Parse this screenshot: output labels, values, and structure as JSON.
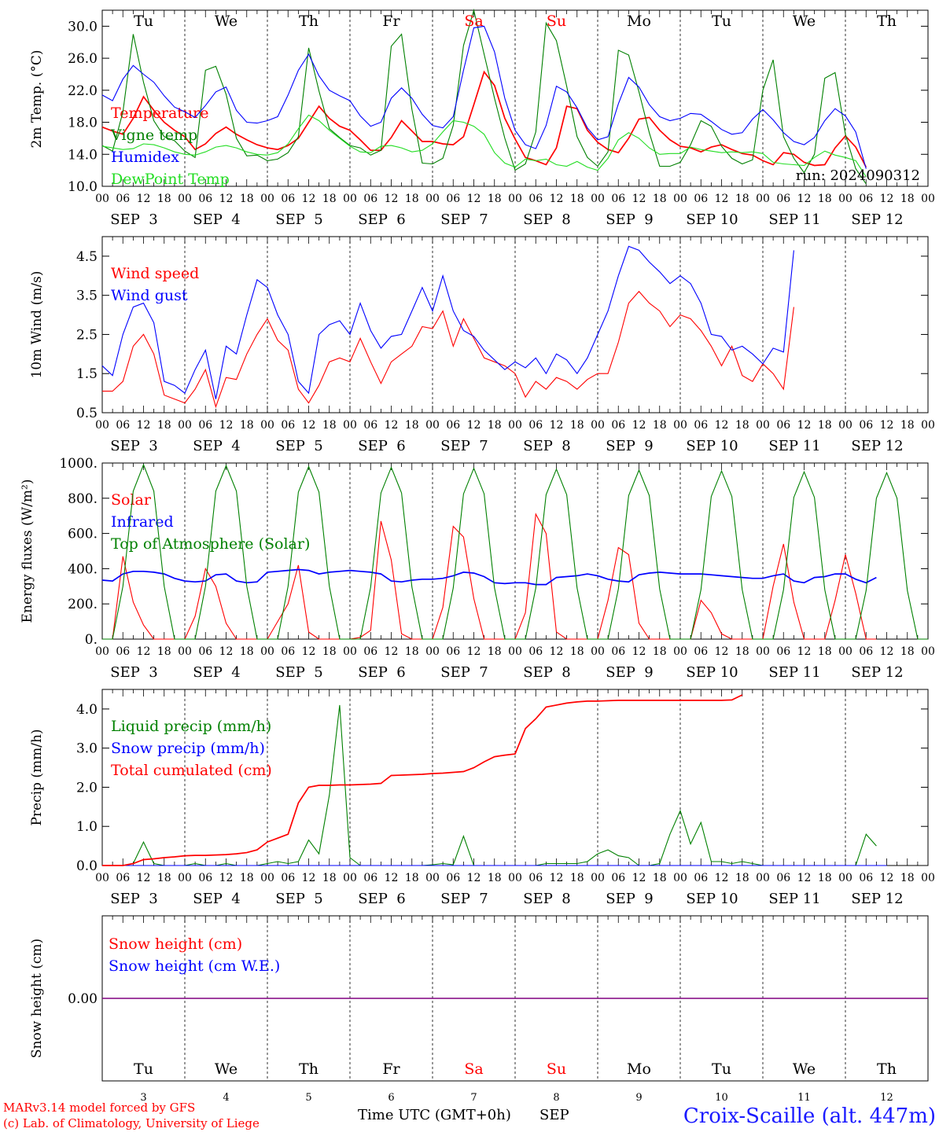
{
  "colors": {
    "red": "#ff0000",
    "green": "#008000",
    "blue": "#0000ff",
    "lightgreen": "#22dd22",
    "purple": "#800080",
    "axis": "#000000",
    "weekend": "#ff0000",
    "station": "#1a1aff"
  },
  "days": [
    "Tu",
    "We",
    "Th",
    "Fr",
    "Sa",
    "Su",
    "Mo",
    "Tu",
    "We",
    "Th"
  ],
  "weekend_days": [
    4,
    5
  ],
  "date_labels": [
    "SEP  3",
    "SEP  4",
    "SEP  5",
    "SEP  6",
    "SEP  7",
    "SEP  8",
    "SEP  9",
    "SEP 10",
    "SEP 11",
    "SEP 12"
  ],
  "hour_labels": [
    "00",
    "06",
    "12",
    "18"
  ],
  "hour_final": "00",
  "bottom_day_numbers": [
    "3",
    "4",
    "5",
    "6",
    "7",
    "8",
    "9",
    "10",
    "11",
    "12"
  ],
  "run_label": "run: 2024090312",
  "footer": {
    "model_line": "MARv3.14 model forced by GFS",
    "lab_line": "(c) Lab. of Climatology, University of Liege",
    "time_axis": "Time UTC (GMT+0h)",
    "month": "SEP",
    "station": "Croix-Scaille (alt. 447m)"
  },
  "chart_data": [
    {
      "id": "temperature",
      "type": "line",
      "ylabel": "2m Temp. (°C)",
      "ylim": [
        10,
        32
      ],
      "yticks": [
        "10.0",
        "14.0",
        "18.0",
        "22.0",
        "26.0",
        "30.0"
      ],
      "x_unit": "hours since SEP 3 00 UTC (3-hourly)",
      "series": [
        {
          "name": "Temperature",
          "color": "red",
          "x0": 0,
          "dx": 3,
          "values": [
            17.4,
            16.9,
            16.5,
            18.5,
            21.2,
            19.5,
            18.0,
            17.0,
            16.2,
            14.6,
            15.3,
            16.6,
            17.4,
            16.5,
            15.8,
            15.2,
            14.8,
            14.6,
            15.1,
            16.0,
            18.0,
            20.0,
            18.5,
            17.5,
            17.0,
            15.8,
            14.5,
            14.5,
            16.1,
            18.2,
            16.9,
            15.6,
            15.6,
            15.3,
            15.2,
            16.2,
            20.2,
            24.3,
            22.6,
            18.5,
            15.9,
            13.6,
            13.2,
            12.7,
            14.8,
            20.0,
            19.7,
            17.0,
            15.5,
            14.6,
            14.2,
            16.0,
            18.4,
            18.6,
            17.0,
            15.8,
            15.0,
            14.8,
            14.3,
            14.9,
            15.2,
            14.6,
            14.1,
            13.9,
            13.2,
            12.7,
            14.2,
            14.0,
            13.0,
            12.6,
            12.7,
            14.8,
            16.3,
            14.9,
            12.4
          ]
        },
        {
          "name": "Vigne temp",
          "color": "green",
          "x0": 0,
          "dx": 3,
          "values": [
            15.1,
            14.4,
            19.3,
            29.0,
            23.0,
            18.2,
            16.2,
            15.7,
            14.4,
            13.6,
            24.5,
            25.0,
            21.5,
            16.0,
            13.8,
            13.9,
            13.2,
            13.4,
            14.2,
            16.2,
            27.3,
            21.9,
            17.2,
            16.1,
            15.1,
            14.8,
            13.9,
            14.5,
            27.5,
            29.0,
            19.6,
            12.9,
            12.8,
            13.5,
            17.6,
            27.6,
            32.5,
            26.5,
            21.0,
            16.0,
            12.0,
            12.8,
            16.8,
            30.4,
            28.2,
            22.5,
            16.2,
            13.6,
            12.5,
            14.3,
            27.0,
            26.4,
            21.8,
            16.7,
            12.5,
            12.5,
            13.0,
            15.2,
            18.2,
            17.5,
            15.0,
            13.5,
            12.8,
            13.3,
            22.0,
            25.8,
            16.2,
            13.5,
            11.7,
            14.0,
            23.5,
            24.2,
            16.5,
            12.2,
            10.3
          ]
        },
        {
          "name": "Humidex",
          "color": "blue",
          "x0": 0,
          "dx": 3,
          "values": [
            21.4,
            20.7,
            23.4,
            25.1,
            24.0,
            23.0,
            21.3,
            19.9,
            19.3,
            18.6,
            20.1,
            21.8,
            22.4,
            19.5,
            18.0,
            17.9,
            18.2,
            18.7,
            21.4,
            24.5,
            26.5,
            23.8,
            22.0,
            21.3,
            20.7,
            18.8,
            17.5,
            18.0,
            21.0,
            22.3,
            21.0,
            19.0,
            17.6,
            17.3,
            18.7,
            24.5,
            29.8,
            30.0,
            26.8,
            21.0,
            17.0,
            15.2,
            14.7,
            17.6,
            22.5,
            21.8,
            19.8,
            17.3,
            15.8,
            16.2,
            20.3,
            23.6,
            22.4,
            20.2,
            18.7,
            18.2,
            18.5,
            19.1,
            19.0,
            18.1,
            17.1,
            16.5,
            16.7,
            18.4,
            19.6,
            18.3,
            16.7,
            15.6,
            15.2,
            16.1,
            18.2,
            19.7,
            18.8,
            16.8,
            12.2
          ]
        },
        {
          "name": "DewPoint Temp",
          "color": "lightgreen",
          "x0": 0,
          "dx": 3,
          "values": [
            15.0,
            14.8,
            14.6,
            14.7,
            15.3,
            15.2,
            14.8,
            14.3,
            14.0,
            13.9,
            14.3,
            14.9,
            15.1,
            14.8,
            14.3,
            14.0,
            13.9,
            14.2,
            15.3,
            17.2,
            18.9,
            18.2,
            17.0,
            16.0,
            15.0,
            14.3,
            14.2,
            15.0,
            15.1,
            14.8,
            14.3,
            14.5,
            15.3,
            16.8,
            18.2,
            18.0,
            17.5,
            16.5,
            14.2,
            12.9,
            12.4,
            13.4,
            13.2,
            13.4,
            12.7,
            12.5,
            13.1,
            12.4,
            12.0,
            13.5,
            15.8,
            16.7,
            16.0,
            14.8,
            14.0,
            14.1,
            14.1,
            14.9,
            14.6,
            14.4,
            14.2,
            14.3,
            14.2,
            14.3,
            14.1,
            13.0,
            12.8,
            12.7,
            12.6,
            13.6,
            14.4,
            13.9,
            13.6,
            13.2,
            11.2
          ]
        }
      ]
    },
    {
      "id": "wind",
      "type": "line",
      "ylabel": "10m Wind (m/s)",
      "ylim": [
        0.5,
        5.0
      ],
      "yticks": [
        "0.5",
        "1.5",
        "2.5",
        "3.5",
        "4.5"
      ],
      "series": [
        {
          "name": "Wind speed",
          "color": "red",
          "x0": 0,
          "dx": 3,
          "values": [
            1.05,
            1.05,
            1.3,
            2.2,
            2.5,
            2.0,
            0.95,
            0.85,
            0.75,
            1.1,
            1.6,
            0.65,
            1.4,
            1.35,
            2.0,
            2.5,
            2.9,
            2.35,
            2.1,
            1.1,
            0.75,
            1.2,
            1.8,
            1.9,
            1.8,
            2.4,
            1.8,
            1.25,
            1.8,
            2.0,
            2.2,
            2.7,
            2.65,
            3.1,
            2.2,
            2.9,
            2.4,
            1.9,
            1.8,
            1.7,
            1.5,
            0.9,
            1.3,
            1.1,
            1.4,
            1.3,
            1.1,
            1.35,
            1.5,
            1.5,
            2.3,
            3.3,
            3.6,
            3.3,
            3.1,
            2.7,
            3.0,
            2.9,
            2.6,
            2.2,
            1.7,
            2.2,
            1.45,
            1.3,
            1.75,
            1.5,
            1.1,
            3.2
          ]
        },
        {
          "name": "Wind gust",
          "color": "blue",
          "x0": 0,
          "dx": 3,
          "values": [
            1.7,
            1.45,
            2.5,
            3.2,
            3.3,
            2.8,
            1.3,
            1.2,
            1.0,
            1.6,
            2.1,
            0.85,
            2.2,
            2.0,
            3.0,
            3.9,
            3.7,
            3.0,
            2.5,
            1.3,
            1.0,
            2.5,
            2.75,
            2.85,
            2.5,
            3.3,
            2.6,
            2.15,
            2.45,
            2.5,
            3.1,
            3.7,
            3.1,
            4.0,
            3.1,
            2.6,
            2.45,
            2.1,
            1.85,
            1.6,
            1.8,
            1.65,
            1.9,
            1.5,
            2.0,
            1.85,
            1.5,
            1.9,
            2.5,
            3.1,
            4.0,
            4.75,
            4.65,
            4.35,
            4.1,
            3.8,
            4.0,
            3.8,
            3.3,
            2.5,
            2.45,
            2.1,
            2.2,
            2.0,
            1.75,
            2.15,
            2.05,
            4.65
          ]
        }
      ]
    },
    {
      "id": "energy",
      "type": "line",
      "ylabel": "Energy fluxes (W/m²)",
      "ylim": [
        0,
        1000
      ],
      "yticks": [
        "0.",
        "200.",
        "400.",
        "600.",
        "800.",
        "1000."
      ],
      "series": [
        {
          "name": "Solar",
          "color": "red",
          "x0": 0,
          "dx": 3,
          "values": [
            0,
            0,
            470,
            210,
            80,
            0,
            0,
            0,
            0,
            130,
            400,
            300,
            90,
            0,
            0,
            0,
            0,
            100,
            200,
            420,
            40,
            0,
            0,
            0,
            0,
            10,
            50,
            670,
            450,
            30,
            0,
            0,
            0,
            180,
            640,
            580,
            230,
            0,
            0,
            0,
            0,
            150,
            710,
            600,
            40,
            0,
            0,
            0,
            0,
            220,
            520,
            480,
            90,
            0,
            0,
            0,
            0,
            0,
            220,
            150,
            30,
            0,
            0,
            0,
            0,
            300,
            540,
            210,
            0,
            0,
            0,
            220,
            480,
            260,
            0,
            0
          ]
        },
        {
          "name": "Infrared",
          "color": "blue",
          "x0": 0,
          "dx": 3,
          "values": [
            335,
            330,
            370,
            385,
            385,
            380,
            370,
            345,
            330,
            325,
            330,
            365,
            370,
            330,
            320,
            325,
            380,
            385,
            390,
            395,
            390,
            370,
            380,
            385,
            390,
            385,
            380,
            370,
            330,
            325,
            335,
            340,
            340,
            345,
            360,
            380,
            375,
            355,
            320,
            315,
            320,
            320,
            310,
            310,
            350,
            355,
            360,
            370,
            360,
            340,
            330,
            325,
            365,
            375,
            380,
            375,
            370,
            370,
            370,
            365,
            360,
            355,
            350,
            345,
            345,
            360,
            370,
            330,
            320,
            350,
            355,
            370,
            370,
            340,
            320,
            350
          ]
        },
        {
          "name": "Top of Atmosphere (Solar)",
          "color": "green",
          "x0": 0,
          "dx": 3,
          "values": [
            0,
            0,
            300,
            840,
            990,
            840,
            300,
            0,
            0,
            0,
            300,
            840,
            985,
            840,
            300,
            0,
            0,
            0,
            300,
            835,
            980,
            835,
            300,
            0,
            0,
            0,
            295,
            830,
            975,
            830,
            295,
            0,
            0,
            0,
            290,
            825,
            970,
            825,
            290,
            0,
            0,
            0,
            290,
            820,
            965,
            820,
            290,
            0,
            0,
            0,
            285,
            815,
            960,
            815,
            285,
            0,
            0,
            0,
            280,
            810,
            955,
            810,
            280,
            0,
            0,
            0,
            280,
            805,
            950,
            805,
            280,
            0,
            0,
            0,
            275,
            800,
            945,
            800,
            275,
            0,
            0
          ]
        }
      ]
    },
    {
      "id": "precip",
      "type": "line",
      "ylabel": "Precip (mm/h)",
      "ylim": [
        0,
        4.5
      ],
      "yticks": [
        "0.0",
        "1.0",
        "2.0",
        "3.0",
        "4.0"
      ],
      "series": [
        {
          "name": "Liquid precip (mm/h)",
          "color": "green",
          "x0": 0,
          "dx": 3,
          "values": [
            0,
            0,
            0,
            0.05,
            0.6,
            0.05,
            0,
            0,
            0,
            0.05,
            0,
            0,
            0.05,
            0,
            0,
            0,
            0.05,
            0.1,
            0.05,
            0.1,
            0.65,
            0.3,
            1.8,
            4.1,
            0.2,
            0,
            0,
            0,
            0,
            0,
            0,
            0,
            0.02,
            0.05,
            0.02,
            0.75,
            0,
            0,
            0,
            0,
            0,
            0,
            0,
            0.05,
            0.05,
            0.05,
            0.05,
            0.1,
            0.3,
            0.4,
            0.25,
            0.2,
            0,
            0,
            0.05,
            0.8,
            1.4,
            0.55,
            1.1,
            0.1,
            0.1,
            0.05,
            0.1,
            0.05,
            0,
            0,
            0,
            0,
            0,
            0,
            0,
            0,
            0,
            0,
            0.8,
            0.5
          ]
        },
        {
          "name": "Snow precip (mm/h)",
          "color": "blue",
          "x0": 0,
          "dx": 3,
          "values": [
            0,
            0,
            0,
            0,
            0,
            0,
            0,
            0,
            0,
            0,
            0,
            0,
            0,
            0,
            0,
            0,
            0,
            0,
            0,
            0,
            0,
            0,
            0,
            0,
            0,
            0,
            0,
            0,
            0,
            0,
            0,
            0,
            0,
            0,
            0,
            0,
            0,
            0,
            0,
            0,
            0,
            0,
            0,
            0,
            0,
            0,
            0,
            0,
            0,
            0,
            0,
            0,
            0,
            0,
            0,
            0,
            0,
            0,
            0,
            0,
            0,
            0,
            0,
            0,
            0,
            0,
            0,
            0,
            0,
            0,
            0,
            0,
            0,
            0,
            0,
            0,
            0
          ]
        },
        {
          "name": "Total cumulated (cm)",
          "color": "red",
          "x0": 0,
          "dx": 3,
          "values": [
            0,
            0,
            0,
            0.05,
            0.15,
            0.17,
            0.2,
            0.22,
            0.25,
            0.26,
            0.26,
            0.27,
            0.28,
            0.3,
            0.33,
            0.4,
            0.6,
            0.7,
            0.8,
            1.6,
            2.0,
            2.05,
            2.05,
            2.06,
            2.06,
            2.07,
            2.08,
            2.1,
            2.3,
            2.31,
            2.32,
            2.33,
            2.35,
            2.36,
            2.38,
            2.4,
            2.5,
            2.65,
            2.78,
            2.82,
            2.85,
            3.5,
            3.75,
            4.05,
            4.1,
            4.15,
            4.18,
            4.2,
            4.2,
            4.21,
            4.22,
            4.22,
            4.22,
            4.22,
            4.22,
            4.22,
            4.22,
            4.22,
            4.22,
            4.22,
            4.22,
            4.23,
            4.36
          ]
        }
      ]
    },
    {
      "id": "snow",
      "type": "line",
      "ylabel": "Snow height (cm)",
      "ylim": [
        -1,
        1
      ],
      "yticks": [
        "0.00"
      ],
      "series": [
        {
          "name": "Snow height (cm)",
          "color": "red",
          "x0": 0,
          "dx": 240,
          "values": [
            0,
            0
          ]
        },
        {
          "name": "Snow height (cm W.E.)",
          "color": "blue",
          "x0": 0,
          "dx": 240,
          "values": [
            0,
            0
          ]
        }
      ]
    }
  ]
}
